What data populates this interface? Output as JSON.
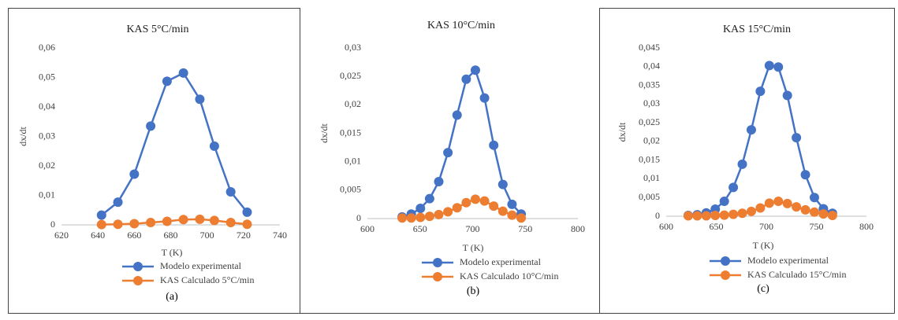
{
  "chart_data": [
    {
      "type": "line",
      "title": "KAS 5°C/min",
      "xlabel": "T (K)",
      "ylabel": "dx/dt",
      "caption": "(a)",
      "x": [
        642,
        651,
        660,
        669,
        678,
        687,
        696,
        704,
        713,
        722
      ],
      "series": [
        {
          "name": "Modelo experimental",
          "color": "#4472c4",
          "values": [
            0.0033,
            0.0077,
            0.0172,
            0.0335,
            0.0487,
            0.0515,
            0.0426,
            0.0267,
            0.0112,
            0.0043
          ]
        },
        {
          "name": "KAS Calculado 5°C/min",
          "color": "#ed7d31",
          "values": [
            0.0001,
            0.0002,
            0.0004,
            0.0008,
            0.0012,
            0.0018,
            0.0019,
            0.0015,
            0.0008,
            0.0002
          ]
        }
      ],
      "xlim": [
        620,
        740
      ],
      "xticks": [
        620,
        640,
        660,
        680,
        700,
        720,
        740
      ],
      "ylim": [
        0,
        0.06
      ],
      "yticks": [
        0,
        {
          "value": 0.01,
          "label": "0,01"
        },
        {
          "value": 0.02,
          "label": "0,02"
        },
        {
          "value": 0.03,
          "label": "0,03"
        },
        {
          "value": 0.04,
          "label": "0,04"
        },
        {
          "value": 0.05,
          "label": "0,05"
        },
        {
          "value": 0.06,
          "label": "0,06"
        }
      ],
      "grid": false,
      "legend": "bottom"
    },
    {
      "type": "line",
      "title": "KAS 10°C/min",
      "xlabel": "T (K)",
      "ylabel": "dx/dt",
      "caption": "(b)",
      "x": [
        633,
        641.7,
        650.4,
        659.1,
        667.8,
        676.5,
        685.2,
        693.9,
        702.6,
        711.3,
        720,
        728.7,
        737.4,
        746.1
      ],
      "series": [
        {
          "name": "Modelo experimental",
          "color": "#4472c4",
          "values": [
            0.0003,
            0.0008,
            0.0018,
            0.0035,
            0.0065,
            0.0116,
            0.0182,
            0.0245,
            0.0261,
            0.0212,
            0.0129,
            0.006,
            0.0025,
            0.0008
          ]
        },
        {
          "name": "KAS Calculado 10°C/min",
          "color": "#ed7d31",
          "values": [
            0.0001,
            0.0001,
            0.0002,
            0.0004,
            0.0007,
            0.0012,
            0.0019,
            0.0028,
            0.0034,
            0.0031,
            0.0022,
            0.0013,
            0.0006,
            0.0001
          ]
        }
      ],
      "xlim": [
        600,
        800
      ],
      "xticks": [
        600,
        650,
        700,
        750,
        800
      ],
      "ylim": [
        0,
        0.03
      ],
      "yticks": [
        0,
        {
          "value": 0.005,
          "label": "0,005"
        },
        {
          "value": 0.01,
          "label": "0,01"
        },
        {
          "value": 0.015,
          "label": "0,015"
        },
        {
          "value": 0.02,
          "label": "0,02"
        },
        {
          "value": 0.025,
          "label": "0,025"
        },
        {
          "value": 0.03,
          "label": "0,03"
        }
      ],
      "grid": false,
      "legend": "bottom"
    },
    {
      "type": "line",
      "title": "KAS 15°C/min",
      "xlabel": "T (K)",
      "ylabel": "dx/dt",
      "caption": "(c)",
      "x": [
        622,
        631,
        640,
        649,
        658,
        667,
        676,
        685,
        694,
        703,
        712,
        721,
        730,
        739,
        748,
        757,
        766
      ],
      "series": [
        {
          "name": "Modelo experimental",
          "color": "#4472c4",
          "values": [
            0.0002,
            0.0004,
            0.0009,
            0.0019,
            0.004,
            0.0077,
            0.0139,
            0.0231,
            0.0334,
            0.0403,
            0.0399,
            0.0323,
            0.021,
            0.0111,
            0.005,
            0.002,
            0.0008
          ]
        },
        {
          "name": "KAS Calculado 15°C/min",
          "color": "#ed7d31",
          "values": [
            0.0001,
            0.0001,
            0.0001,
            0.0002,
            0.0003,
            0.0005,
            0.0008,
            0.0013,
            0.0022,
            0.0035,
            0.004,
            0.0034,
            0.0025,
            0.0017,
            0.0011,
            0.0006,
            0.0002
          ]
        }
      ],
      "xlim": [
        600,
        800
      ],
      "xticks": [
        600,
        650,
        700,
        750,
        800
      ],
      "ylim": [
        0,
        0.045
      ],
      "yticks": [
        0,
        {
          "value": 0.005,
          "label": "0,005"
        },
        {
          "value": 0.01,
          "label": "0,01"
        },
        {
          "value": 0.015,
          "label": "0,015"
        },
        {
          "value": 0.02,
          "label": "0,02"
        },
        {
          "value": 0.025,
          "label": "0,025"
        },
        {
          "value": 0.03,
          "label": "0,03"
        },
        {
          "value": 0.035,
          "label": "0,035"
        },
        {
          "value": 0.04,
          "label": "0,04"
        },
        {
          "value": 0.045,
          "label": "0,045"
        }
      ],
      "grid": false,
      "legend": "bottom"
    }
  ]
}
